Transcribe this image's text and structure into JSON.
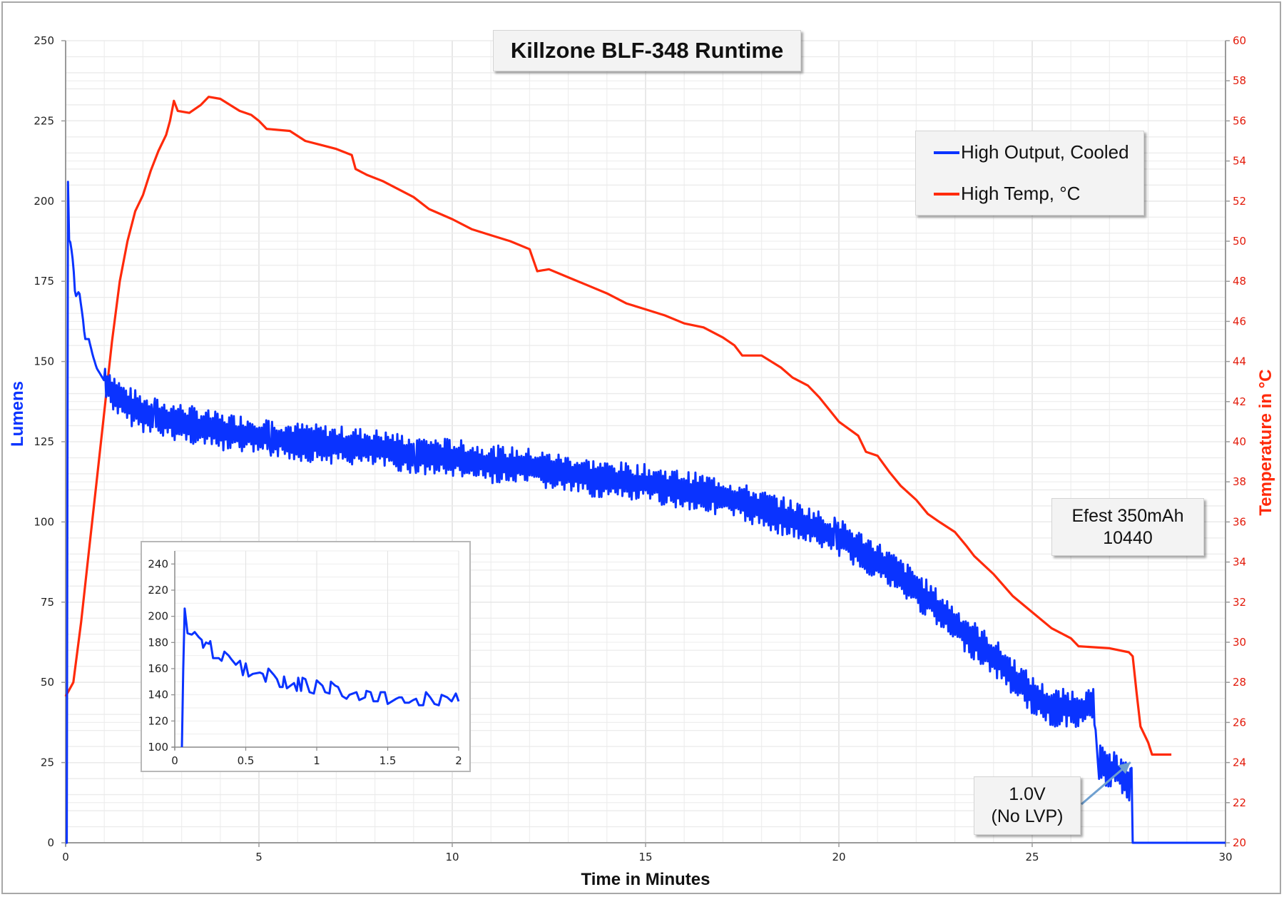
{
  "chart_data": {
    "type": "line",
    "title": "Killzone BLF-348 Runtime",
    "xlabel": "Time in Minutes",
    "ylabel": "Lumens",
    "y2label": "Temperature in °C",
    "xlim": [
      0,
      30
    ],
    "ylim": [
      0,
      250
    ],
    "y2lim": [
      20,
      60
    ],
    "x_ticks": [
      "0",
      "5",
      "10",
      "15",
      "20",
      "25",
      "30"
    ],
    "y_ticks": [
      "0",
      "25",
      "50",
      "75",
      "100",
      "125",
      "150",
      "175",
      "200",
      "225",
      "250"
    ],
    "y2_ticks": [
      "20",
      "22",
      "24",
      "26",
      "28",
      "30",
      "32",
      "34",
      "36",
      "38",
      "40",
      "42",
      "44",
      "46",
      "48",
      "50",
      "52",
      "54",
      "56",
      "58",
      "60"
    ],
    "grid": true,
    "legend_position": "top-right",
    "colors": {
      "lumens": "#0a33ff",
      "temp": "#ff2a0a",
      "arrow": "#6fa0d0"
    },
    "series": [
      {
        "name": "High Output, Cooled",
        "axis": "left",
        "note": "measured output oscillates about this trend; amplitude in lumens",
        "oscillation_amplitude": 6,
        "points": [
          [
            0.0,
            0
          ],
          [
            0.05,
            0
          ],
          [
            0.06,
            206
          ],
          [
            0.08,
            188
          ],
          [
            0.13,
            187
          ],
          [
            0.2,
            180
          ],
          [
            0.25,
            170
          ],
          [
            0.35,
            172
          ],
          [
            0.45,
            163
          ],
          [
            0.5,
            157
          ],
          [
            0.6,
            157
          ],
          [
            0.7,
            152
          ],
          [
            0.8,
            148
          ],
          [
            1.0,
            144
          ],
          [
            1.2,
            141
          ],
          [
            1.5,
            137
          ],
          [
            2.0,
            134
          ],
          [
            2.5,
            132
          ],
          [
            3.0,
            131
          ],
          [
            4.0,
            128
          ],
          [
            5.0,
            127
          ],
          [
            6.0,
            125
          ],
          [
            7.0,
            124
          ],
          [
            8.0,
            123
          ],
          [
            9.0,
            121
          ],
          [
            10.0,
            120
          ],
          [
            11.0,
            118
          ],
          [
            12.0,
            117
          ],
          [
            13.0,
            115
          ],
          [
            14.0,
            113
          ],
          [
            15.0,
            112
          ],
          [
            16.0,
            110
          ],
          [
            17.0,
            108
          ],
          [
            18.0,
            104
          ],
          [
            19.0,
            100
          ],
          [
            20.0,
            95
          ],
          [
            21.0,
            88
          ],
          [
            22.0,
            79
          ],
          [
            23.0,
            68
          ],
          [
            24.0,
            58
          ],
          [
            25.0,
            46
          ],
          [
            25.5,
            42
          ],
          [
            26.6,
            42
          ],
          [
            26.7,
            25
          ],
          [
            27.2,
            22
          ],
          [
            27.55,
            18
          ],
          [
            27.58,
            26
          ],
          [
            27.6,
            0
          ],
          [
            30.0,
            0
          ]
        ]
      },
      {
        "name": "High Temp, °C",
        "axis": "right",
        "points": [
          [
            0.0,
            27.3
          ],
          [
            0.2,
            28.0
          ],
          [
            0.4,
            31.0
          ],
          [
            0.6,
            34.5
          ],
          [
            0.8,
            38.0
          ],
          [
            1.0,
            41.5
          ],
          [
            1.2,
            45.0
          ],
          [
            1.4,
            48.0
          ],
          [
            1.6,
            50.0
          ],
          [
            1.8,
            51.5
          ],
          [
            2.0,
            52.3
          ],
          [
            2.2,
            53.5
          ],
          [
            2.4,
            54.5
          ],
          [
            2.6,
            55.3
          ],
          [
            2.7,
            56.0
          ],
          [
            2.8,
            57.0
          ],
          [
            2.9,
            56.5
          ],
          [
            3.2,
            56.4
          ],
          [
            3.5,
            56.8
          ],
          [
            3.7,
            57.2
          ],
          [
            4.0,
            57.1
          ],
          [
            4.5,
            56.5
          ],
          [
            4.8,
            56.3
          ],
          [
            5.0,
            56.0
          ],
          [
            5.2,
            55.6
          ],
          [
            5.8,
            55.5
          ],
          [
            6.2,
            55.0
          ],
          [
            6.6,
            54.8
          ],
          [
            7.0,
            54.6
          ],
          [
            7.4,
            54.3
          ],
          [
            7.5,
            53.6
          ],
          [
            7.8,
            53.3
          ],
          [
            8.2,
            53.0
          ],
          [
            8.6,
            52.6
          ],
          [
            9.0,
            52.2
          ],
          [
            9.4,
            51.6
          ],
          [
            10.0,
            51.1
          ],
          [
            10.5,
            50.6
          ],
          [
            11.0,
            50.3
          ],
          [
            11.5,
            50.0
          ],
          [
            12.0,
            49.6
          ],
          [
            12.2,
            48.5
          ],
          [
            12.5,
            48.6
          ],
          [
            13.0,
            48.2
          ],
          [
            13.5,
            47.8
          ],
          [
            14.0,
            47.4
          ],
          [
            14.5,
            46.9
          ],
          [
            15.0,
            46.6
          ],
          [
            15.5,
            46.3
          ],
          [
            16.0,
            45.9
          ],
          [
            16.5,
            45.7
          ],
          [
            16.8,
            45.4
          ],
          [
            17.0,
            45.2
          ],
          [
            17.3,
            44.8
          ],
          [
            17.5,
            44.3
          ],
          [
            18.0,
            44.3
          ],
          [
            18.5,
            43.7
          ],
          [
            18.8,
            43.2
          ],
          [
            19.2,
            42.8
          ],
          [
            19.5,
            42.2
          ],
          [
            20.0,
            41.0
          ],
          [
            20.5,
            40.3
          ],
          [
            20.7,
            39.5
          ],
          [
            21.0,
            39.3
          ],
          [
            21.3,
            38.5
          ],
          [
            21.6,
            37.8
          ],
          [
            22.0,
            37.1
          ],
          [
            22.3,
            36.4
          ],
          [
            22.6,
            36.0
          ],
          [
            23.0,
            35.5
          ],
          [
            23.3,
            34.8
          ],
          [
            23.5,
            34.3
          ],
          [
            24.0,
            33.4
          ],
          [
            24.5,
            32.3
          ],
          [
            25.0,
            31.5
          ],
          [
            25.5,
            30.7
          ],
          [
            26.0,
            30.2
          ],
          [
            26.2,
            29.8
          ],
          [
            27.0,
            29.7
          ],
          [
            27.5,
            29.5
          ],
          [
            27.6,
            29.3
          ],
          [
            27.7,
            27.5
          ],
          [
            27.8,
            25.8
          ],
          [
            28.0,
            25.0
          ],
          [
            28.1,
            24.4
          ],
          [
            28.6,
            24.4
          ]
        ]
      }
    ],
    "inset": {
      "xlim": [
        0,
        2
      ],
      "ylim": [
        100,
        250
      ],
      "x_ticks": [
        "0",
        "0.5",
        "1",
        "1.5",
        "2"
      ],
      "y_ticks": [
        "100",
        "120",
        "140",
        "160",
        "180",
        "200",
        "220",
        "240"
      ],
      "series_name": "High Output, Cooled",
      "points": [
        [
          0.05,
          100
        ],
        [
          0.06,
          160
        ],
        [
          0.07,
          206
        ],
        [
          0.09,
          187
        ],
        [
          0.12,
          186
        ],
        [
          0.14,
          188
        ],
        [
          0.17,
          184
        ],
        [
          0.19,
          182
        ],
        [
          0.2,
          176
        ],
        [
          0.22,
          180
        ],
        [
          0.24,
          179
        ],
        [
          0.25,
          181
        ],
        [
          0.27,
          168
        ],
        [
          0.31,
          168
        ],
        [
          0.33,
          166
        ],
        [
          0.35,
          173
        ],
        [
          0.38,
          170
        ],
        [
          0.4,
          167
        ],
        [
          0.43,
          163
        ],
        [
          0.46,
          166
        ],
        [
          0.48,
          155
        ],
        [
          0.5,
          164
        ],
        [
          0.52,
          154
        ],
        [
          0.55,
          156
        ],
        [
          0.6,
          157
        ],
        [
          0.62,
          156
        ],
        [
          0.64,
          150
        ],
        [
          0.66,
          160
        ],
        [
          0.7,
          155
        ],
        [
          0.72,
          152
        ],
        [
          0.74,
          146
        ],
        [
          0.76,
          146
        ],
        [
          0.77,
          154
        ],
        [
          0.79,
          145
        ],
        [
          0.84,
          149
        ],
        [
          0.86,
          143
        ],
        [
          0.87,
          153
        ],
        [
          0.89,
          143
        ],
        [
          0.9,
          153
        ],
        [
          0.92,
          152
        ],
        [
          0.95,
          142
        ],
        [
          0.98,
          141
        ],
        [
          1.0,
          151
        ],
        [
          1.04,
          147
        ],
        [
          1.06,
          142
        ],
        [
          1.09,
          141
        ],
        [
          1.1,
          150
        ],
        [
          1.13,
          147
        ],
        [
          1.15,
          146
        ],
        [
          1.18,
          139
        ],
        [
          1.21,
          137
        ],
        [
          1.23,
          140
        ],
        [
          1.28,
          142
        ],
        [
          1.3,
          136
        ],
        [
          1.34,
          138
        ],
        [
          1.35,
          143
        ],
        [
          1.38,
          142
        ],
        [
          1.4,
          135
        ],
        [
          1.43,
          135
        ],
        [
          1.45,
          142
        ],
        [
          1.48,
          142
        ],
        [
          1.5,
          133
        ],
        [
          1.53,
          135
        ],
        [
          1.56,
          137
        ],
        [
          1.58,
          138
        ],
        [
          1.6,
          138
        ],
        [
          1.62,
          134
        ],
        [
          1.65,
          134
        ],
        [
          1.68,
          136
        ],
        [
          1.7,
          137
        ],
        [
          1.72,
          132
        ],
        [
          1.75,
          132
        ],
        [
          1.77,
          142
        ],
        [
          1.8,
          138
        ],
        [
          1.83,
          133
        ],
        [
          1.86,
          132
        ],
        [
          1.88,
          140
        ],
        [
          1.92,
          138
        ],
        [
          1.95,
          135
        ],
        [
          1.98,
          141
        ],
        [
          2.0,
          135
        ]
      ]
    },
    "annotations": [
      {
        "id": "battery",
        "lines": [
          "Efest 350mAh",
          "10440"
        ]
      },
      {
        "id": "lvp",
        "lines": [
          "1.0V",
          "(No LVP)"
        ],
        "points_to": [
          27.58,
          26
        ]
      }
    ]
  }
}
